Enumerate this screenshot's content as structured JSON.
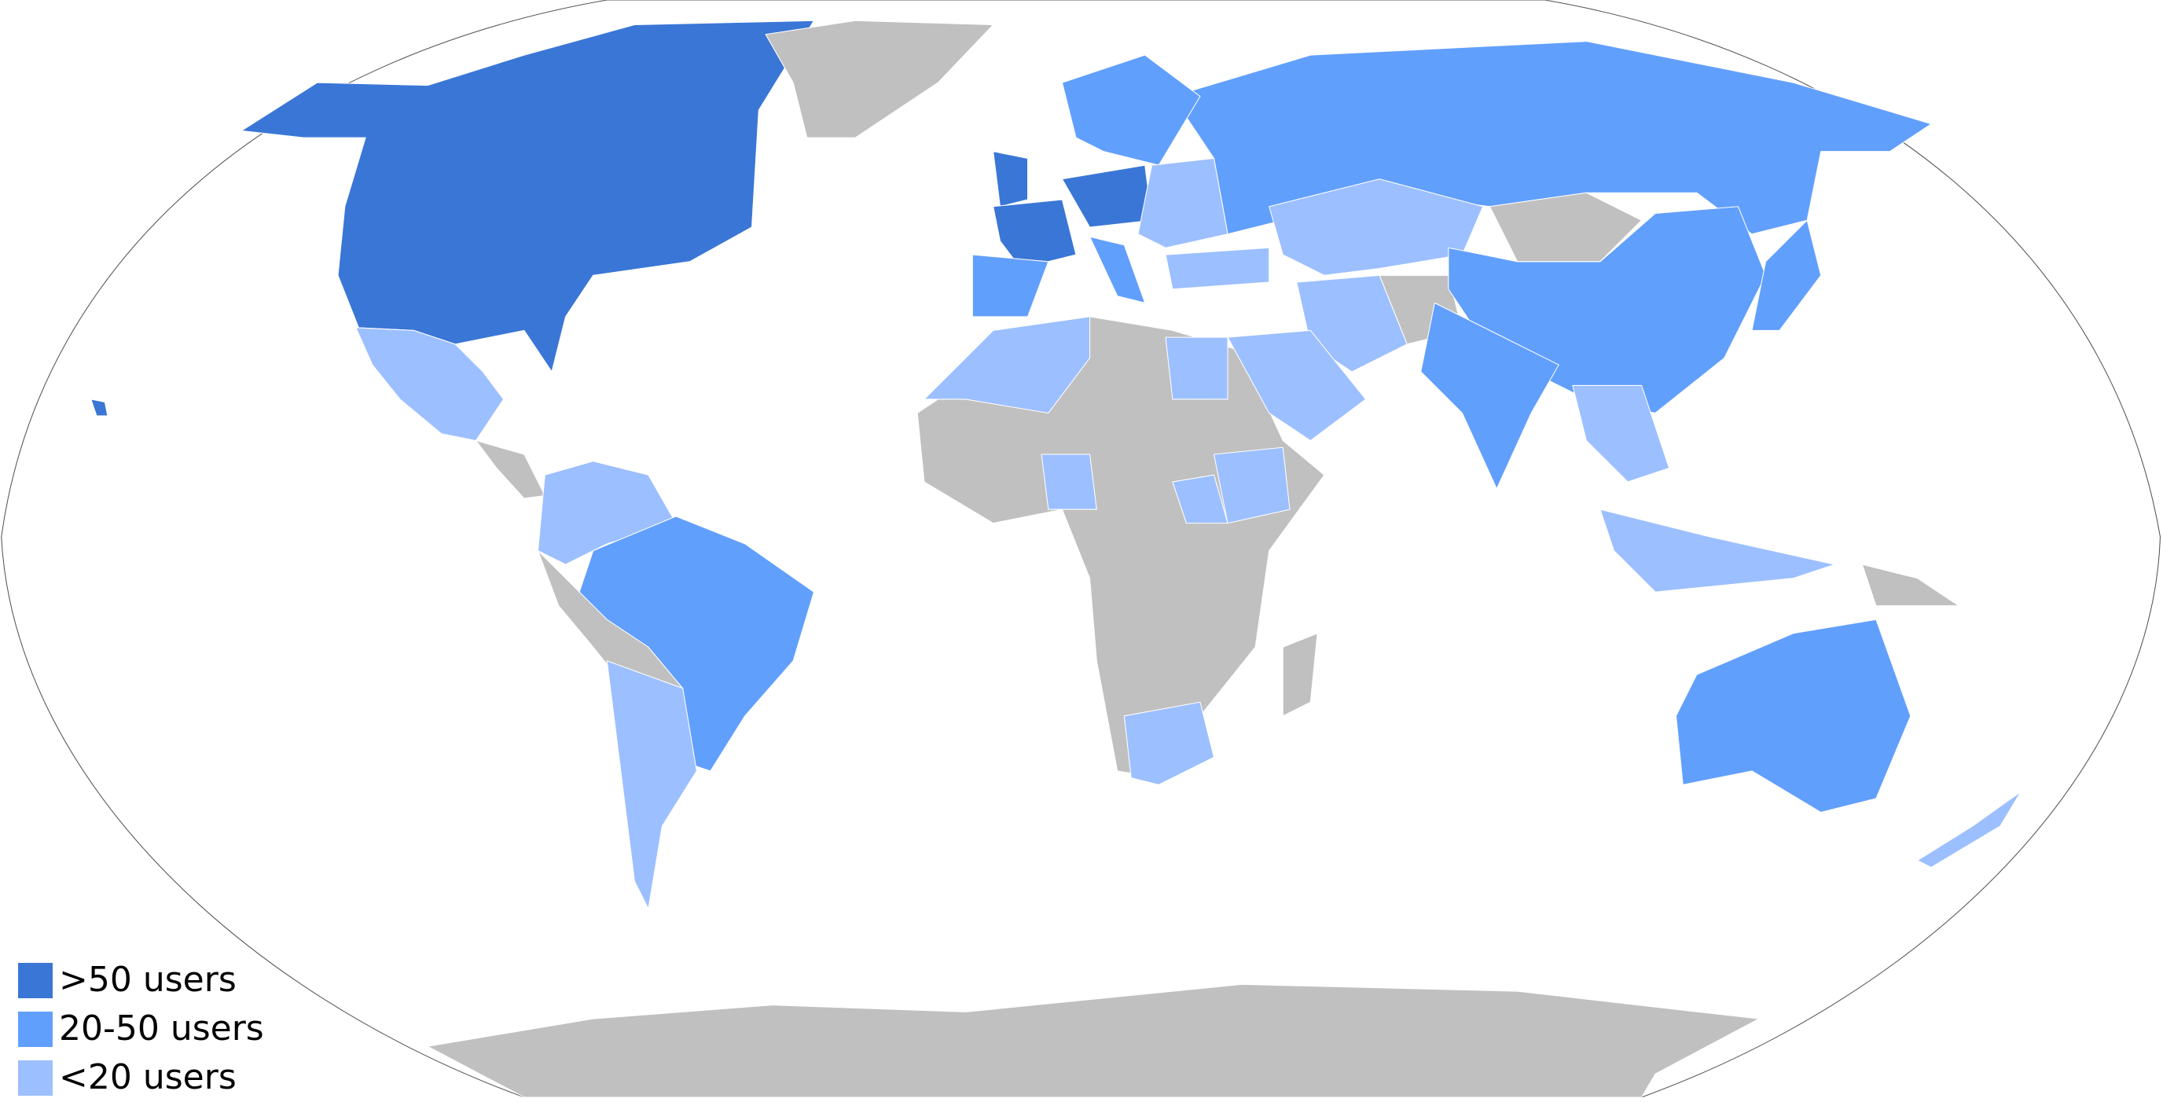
{
  "map": {
    "no_data_color": "#c0c0c0",
    "border_color": "#ffffff",
    "outline_color": "#555555"
  },
  "legend": {
    "placement": "bottom-left",
    "items": [
      {
        "key": "high",
        "label": ">50 users",
        "color": "#3a76d6"
      },
      {
        "key": "mid",
        "label": "20-50 users",
        "color": "#619ffd"
      },
      {
        "key": "low",
        "label": "<20 users",
        "color": "#9cbfff"
      }
    ]
  }
}
